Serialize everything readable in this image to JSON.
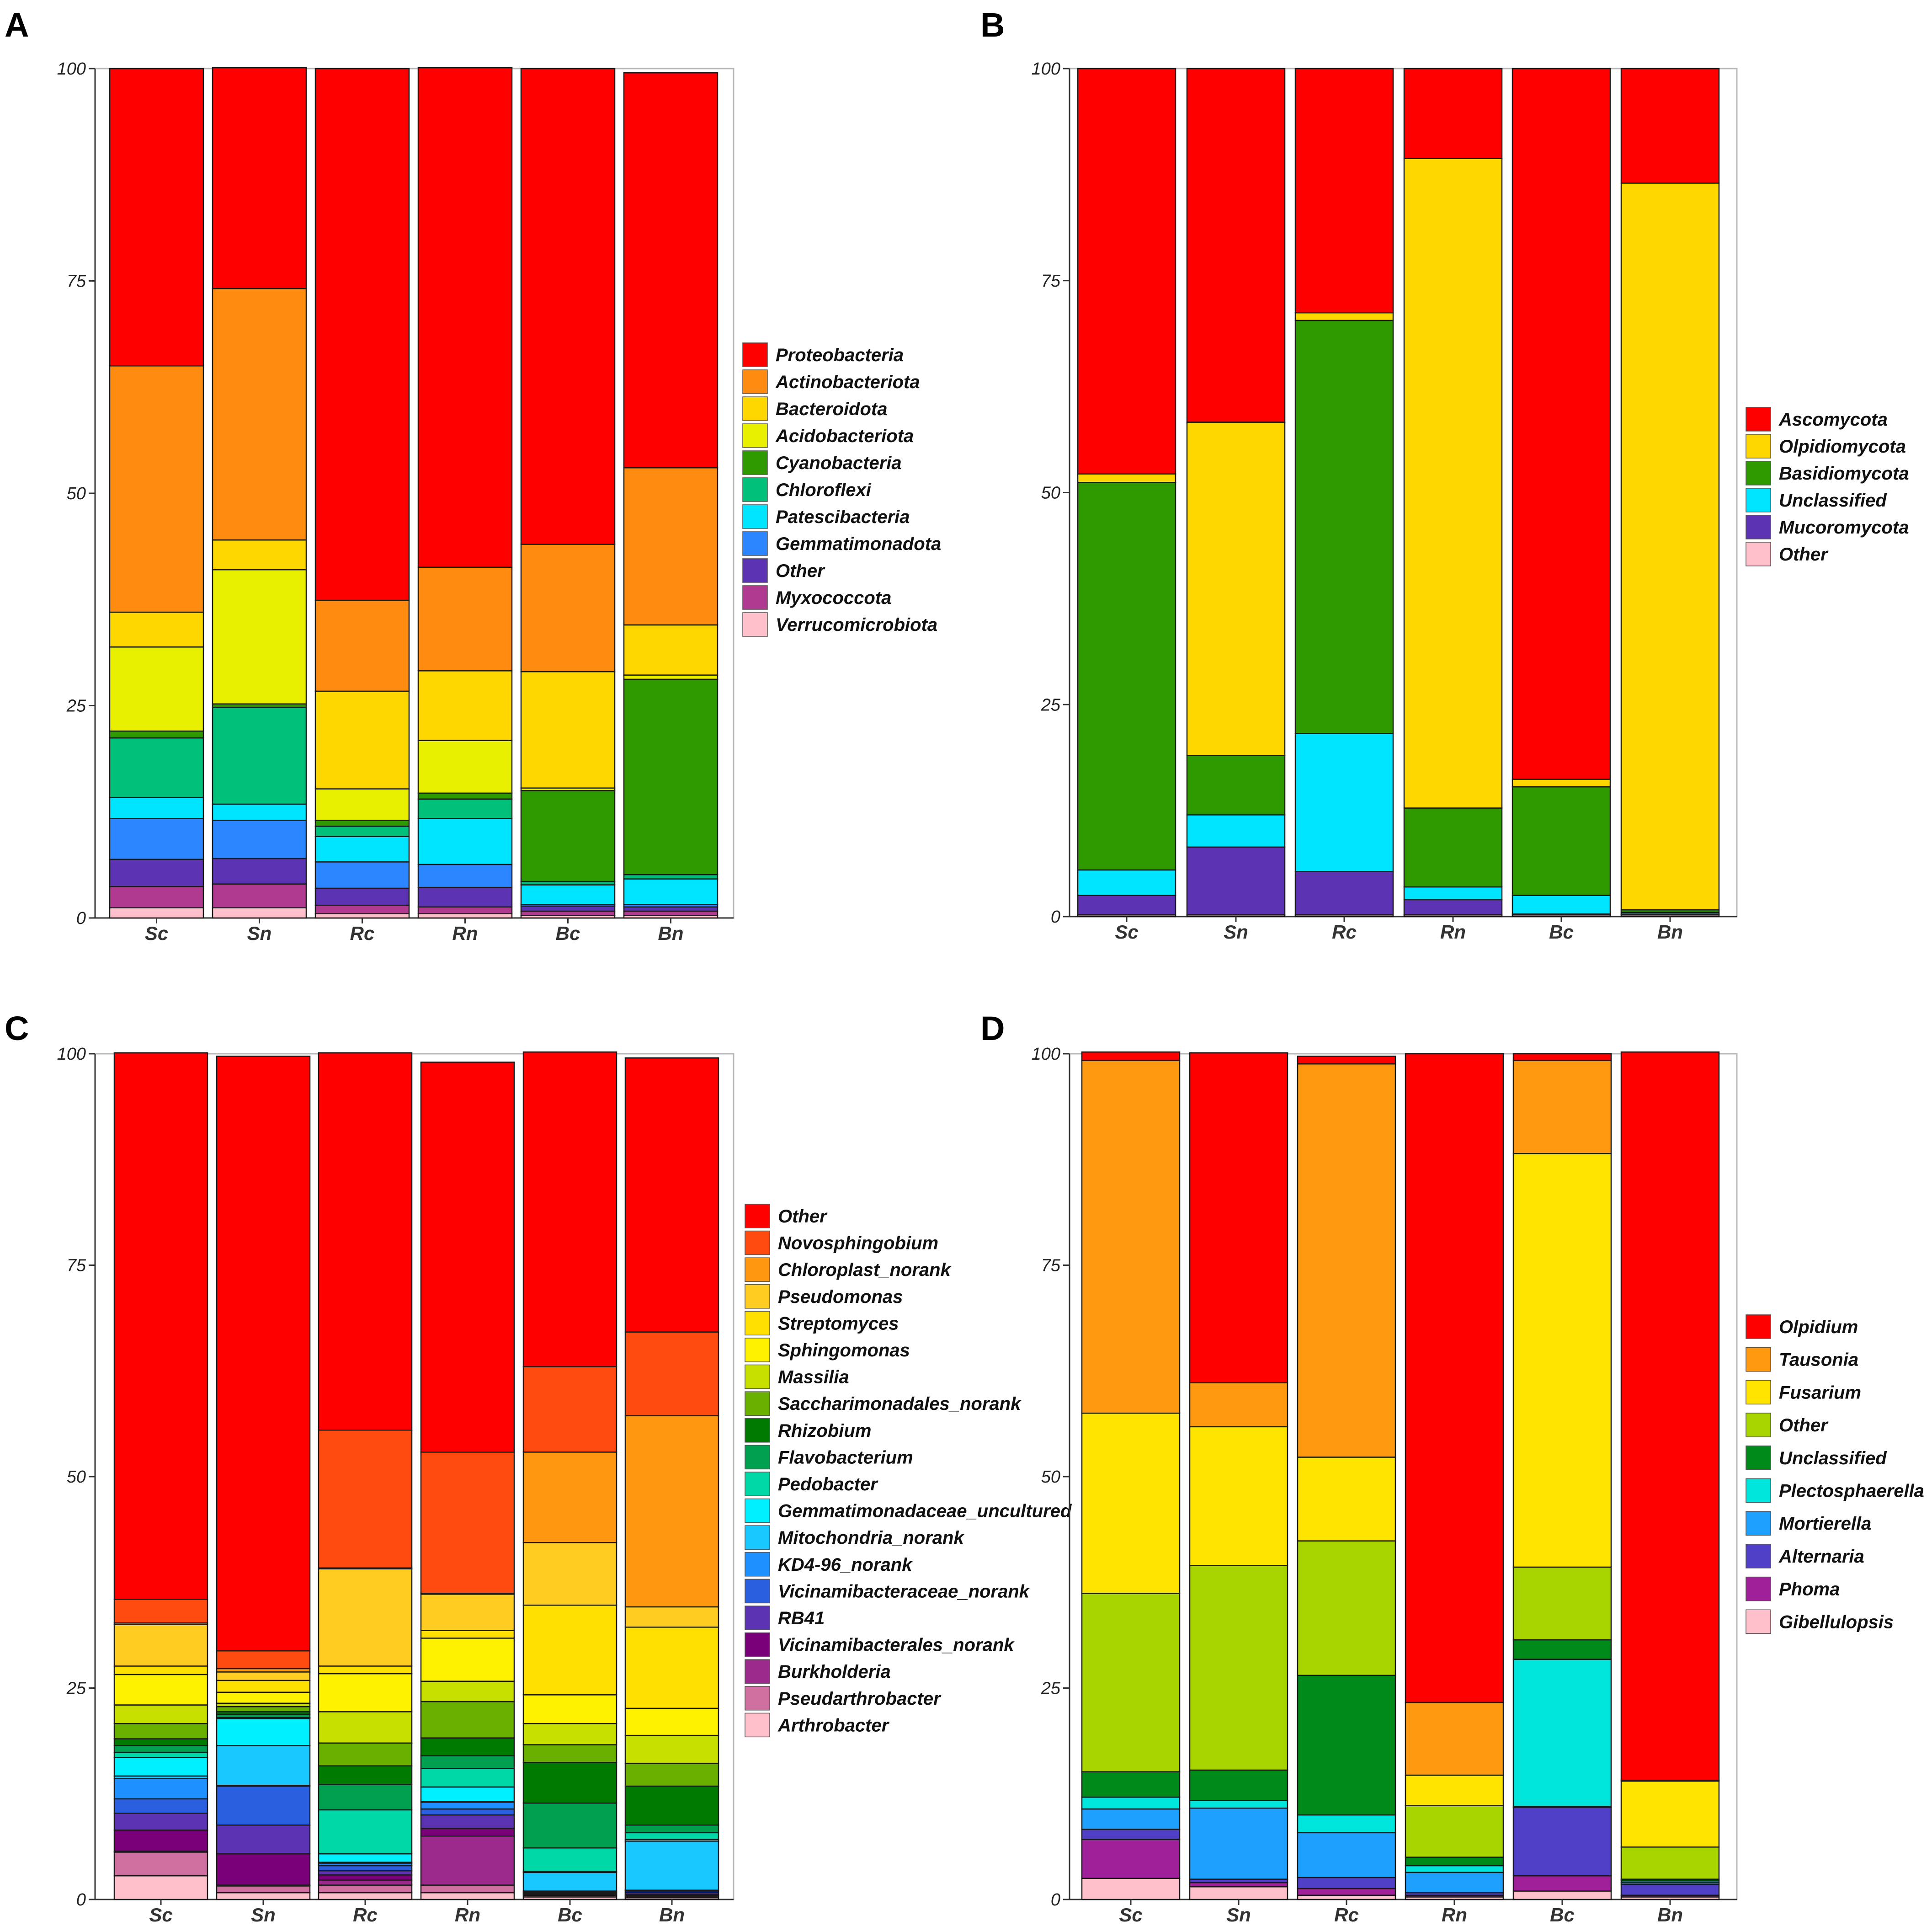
{
  "chart_data": [
    {
      "panel": "A",
      "type": "bar",
      "stacked": true,
      "title": "",
      "xlabel": "",
      "ylabel": "",
      "ylim": [
        0,
        100
      ],
      "yticks": [
        0,
        25,
        50,
        75,
        100
      ],
      "legend_position": "right",
      "categories": [
        "Sc",
        "Sn",
        "Rc",
        "Rn",
        "Bc",
        "Bn"
      ],
      "series": [
        {
          "name": "Verrucomicrobiota",
          "color": "#ffc0cb",
          "values": [
            1.2,
            1.2,
            0.5,
            0.5,
            0.3,
            0.3
          ]
        },
        {
          "name": "Myxococcota",
          "color": "#b03a90",
          "values": [
            2.5,
            2.8,
            1.0,
            0.8,
            0.5,
            0.5
          ]
        },
        {
          "name": "Other",
          "color": "#5b33b3",
          "values": [
            3.2,
            3.0,
            2.0,
            2.3,
            0.6,
            0.5
          ]
        },
        {
          "name": "Gemmatimonadota",
          "color": "#2b86ff",
          "values": [
            4.8,
            4.5,
            3.1,
            2.7,
            0.2,
            0.3
          ]
        },
        {
          "name": "Patescibacteria",
          "color": "#00e5ff",
          "values": [
            2.5,
            1.9,
            3.0,
            5.4,
            2.3,
            3.0
          ]
        },
        {
          "name": "Chloroflexi",
          "color": "#00c07a",
          "values": [
            7.0,
            11.4,
            1.2,
            2.3,
            0.4,
            0.5
          ]
        },
        {
          "name": "Cyanobacteria",
          "color": "#2e9a00",
          "values": [
            0.8,
            0.4,
            0.7,
            0.7,
            10.7,
            23.0
          ]
        },
        {
          "name": "Acidobacteriota",
          "color": "#e8f000",
          "values": [
            9.9,
            15.8,
            3.7,
            6.2,
            0.3,
            0.5
          ]
        },
        {
          "name": "Bacteroidota",
          "color": "#ffd700",
          "values": [
            4.1,
            3.5,
            11.5,
            8.2,
            13.7,
            5.9
          ]
        },
        {
          "name": "Actinobacteriota",
          "color": "#ff8c10",
          "values": [
            29.0,
            29.6,
            10.7,
            12.2,
            15.0,
            18.5
          ]
        },
        {
          "name": "Proteobacteria",
          "color": "#ff0000",
          "values": [
            35.0,
            26.0,
            62.6,
            58.8,
            56.0,
            46.5
          ]
        }
      ],
      "legend_order": [
        "Proteobacteria",
        "Actinobacteriota",
        "Bacteroidota",
        "Acidobacteriota",
        "Cyanobacteria",
        "Chloroflexi",
        "Patescibacteria",
        "Gemmatimonadota",
        "Other",
        "Myxococcota",
        "Verrucomicrobiota"
      ]
    },
    {
      "panel": "B",
      "type": "bar",
      "stacked": true,
      "title": "",
      "xlabel": "",
      "ylabel": "",
      "ylim": [
        0,
        100
      ],
      "yticks": [
        0,
        25,
        50,
        75,
        100
      ],
      "legend_position": "right",
      "categories": [
        "Sc",
        "Sn",
        "Rc",
        "Rn",
        "Bc",
        "Bn"
      ],
      "series": [
        {
          "name": "Other",
          "color": "#ffc0cb",
          "values": [
            0.2,
            0.2,
            0.2,
            0.2,
            0.2,
            0.2
          ]
        },
        {
          "name": "Mucoromycota",
          "color": "#5b33b3",
          "values": [
            2.3,
            8.0,
            5.1,
            1.8,
            0.1,
            0.1
          ]
        },
        {
          "name": "Unclassified",
          "color": "#00e5ff",
          "values": [
            3.0,
            3.8,
            16.3,
            1.5,
            2.2,
            0.2
          ]
        },
        {
          "name": "Basidiomycota",
          "color": "#2e9a00",
          "values": [
            45.7,
            7.0,
            48.7,
            9.3,
            12.8,
            0.3
          ]
        },
        {
          "name": "Olpidiomycota",
          "color": "#ffd700",
          "values": [
            1.0,
            39.3,
            0.9,
            76.6,
            0.9,
            85.7
          ]
        },
        {
          "name": "Ascomycota",
          "color": "#ff0000",
          "values": [
            47.8,
            41.7,
            28.8,
            10.6,
            83.8,
            13.5
          ]
        }
      ],
      "legend_order": [
        "Ascomycota",
        "Olpidiomycota",
        "Basidiomycota",
        "Unclassified",
        "Mucoromycota",
        "Other"
      ]
    },
    {
      "panel": "C",
      "type": "bar",
      "stacked": true,
      "title": "",
      "xlabel": "",
      "ylabel": "",
      "ylim": [
        0,
        100
      ],
      "yticks": [
        0,
        25,
        50,
        75,
        100
      ],
      "legend_position": "right",
      "categories": [
        "Sc",
        "Sn",
        "Rc",
        "Rn",
        "Bc",
        "Bn"
      ],
      "series": [
        {
          "name": "Arthrobacter",
          "color": "#ffc0cb",
          "values": [
            2.8,
            0.8,
            0.8,
            0.8,
            0.3,
            0.2
          ]
        },
        {
          "name": "Pseudarthrobacter",
          "color": "#d070a0",
          "values": [
            2.8,
            0.8,
            0.9,
            0.9,
            0.2,
            0.2
          ]
        },
        {
          "name": "Burkholderia",
          "color": "#9c2a8c",
          "values": [
            0.1,
            0.1,
            0.6,
            5.8,
            0.1,
            0.1
          ]
        },
        {
          "name": "Vicinamibacterales_norank",
          "color": "#7a007a",
          "values": [
            2.5,
            3.7,
            0.6,
            0.9,
            0.1,
            0.1
          ]
        },
        {
          "name": "RB41",
          "color": "#5b33b3",
          "values": [
            2.0,
            3.4,
            0.5,
            1.6,
            0.1,
            0.2
          ]
        },
        {
          "name": "Vicinamibacteraceae_norank",
          "color": "#2a5fe0",
          "values": [
            1.7,
            4.6,
            0.6,
            0.7,
            0.1,
            0.2
          ]
        },
        {
          "name": "KD4-96_norank",
          "color": "#1e90ff",
          "values": [
            2.4,
            0.1,
            0.3,
            0.8,
            0.1,
            0.1
          ]
        },
        {
          "name": "Mitochondria_norank",
          "color": "#19c8ff",
          "values": [
            0.3,
            4.7,
            0.1,
            0.1,
            2.2,
            5.8
          ]
        },
        {
          "name": "Gemmatimonadaceae_uncultured",
          "color": "#00f0ff",
          "values": [
            2.2,
            3.2,
            1.0,
            1.7,
            0.1,
            0.2
          ]
        },
        {
          "name": "Pedobacter",
          "color": "#00d8a8",
          "values": [
            0.6,
            0.1,
            5.2,
            2.2,
            2.8,
            0.8
          ]
        },
        {
          "name": "Flavobacterium",
          "color": "#00a050",
          "values": [
            0.8,
            0.4,
            3.0,
            1.5,
            5.3,
            0.9
          ]
        },
        {
          "name": "Rhizobium",
          "color": "#007a00",
          "values": [
            0.8,
            0.3,
            2.2,
            2.1,
            4.8,
            4.6
          ]
        },
        {
          "name": "Saccharimonadales_norank",
          "color": "#6ab000",
          "values": [
            1.8,
            0.6,
            2.7,
            4.3,
            2.1,
            2.7
          ]
        },
        {
          "name": "Massilia",
          "color": "#c8e000",
          "values": [
            2.2,
            0.4,
            3.7,
            2.4,
            2.5,
            3.3
          ]
        },
        {
          "name": "Sphingomonas",
          "color": "#fff200",
          "values": [
            3.6,
            1.3,
            4.5,
            5.1,
            3.4,
            3.2
          ]
        },
        {
          "name": "Streptomyces",
          "color": "#ffe000",
          "values": [
            1.0,
            1.4,
            0.9,
            0.9,
            10.6,
            9.6
          ]
        },
        {
          "name": "Pseudomonas",
          "color": "#ffcc22",
          "values": [
            4.9,
            1.0,
            11.5,
            4.3,
            7.4,
            2.4
          ]
        },
        {
          "name": "Chloroplast_norank",
          "color": "#ff9810",
          "values": [
            0.2,
            0.4,
            0.1,
            0.1,
            10.7,
            22.6
          ]
        },
        {
          "name": "Novosphingobium",
          "color": "#ff4a10",
          "values": [
            2.8,
            2.1,
            16.3,
            16.7,
            10.1,
            9.9
          ]
        },
        {
          "name": "Other",
          "color": "#ff0000",
          "values": [
            64.6,
            70.3,
            44.6,
            46.1,
            37.2,
            32.4
          ]
        }
      ],
      "legend_order": [
        "Other",
        "Novosphingobium",
        "Chloroplast_norank",
        "Pseudomonas",
        "Streptomyces",
        "Sphingomonas",
        "Massilia",
        "Saccharimonadales_norank",
        "Rhizobium",
        "Flavobacterium",
        "Pedobacter",
        "Gemmatimonadaceae_uncultured",
        "Mitochondria_norank",
        "KD4-96_norank",
        "Vicinamibacteraceae_norank",
        "RB41",
        "Vicinamibacterales_norank",
        "Burkholderia",
        "Pseudarthrobacter",
        "Arthrobacter"
      ]
    },
    {
      "panel": "D",
      "type": "bar",
      "stacked": true,
      "title": "",
      "xlabel": "",
      "ylabel": "",
      "ylim": [
        0,
        100
      ],
      "yticks": [
        0,
        25,
        50,
        75,
        100
      ],
      "legend_position": "right",
      "categories": [
        "Sc",
        "Sn",
        "Rc",
        "Rn",
        "Bc",
        "Bn"
      ],
      "series": [
        {
          "name": "Gibellulopsis",
          "color": "#ffc0cb",
          "values": [
            2.5,
            1.5,
            0.5,
            0.3,
            1.0,
            0.3
          ]
        },
        {
          "name": "Phoma",
          "color": "#a0209a",
          "values": [
            4.6,
            0.5,
            0.8,
            0.2,
            1.8,
            0.2
          ]
        },
        {
          "name": "Alternaria",
          "color": "#5040c8",
          "values": [
            1.2,
            0.4,
            1.3,
            0.3,
            8.1,
            1.3
          ]
        },
        {
          "name": "Mortierella",
          "color": "#1ea0ff",
          "values": [
            2.4,
            8.4,
            5.3,
            2.4,
            0.1,
            0.2
          ]
        },
        {
          "name": "Plectosphaerella",
          "color": "#00e5dc",
          "values": [
            1.4,
            0.9,
            2.1,
            0.8,
            17.4,
            0.2
          ]
        },
        {
          "name": "Unclassified",
          "color": "#008a1a",
          "values": [
            3.0,
            3.6,
            16.5,
            1.0,
            2.3,
            0.2
          ]
        },
        {
          "name": "Other",
          "color": "#a8d400",
          "values": [
            21.1,
            24.2,
            15.9,
            6.1,
            8.6,
            3.8
          ]
        },
        {
          "name": "Fusarium",
          "color": "#ffe400",
          "values": [
            21.3,
            16.4,
            9.9,
            3.6,
            48.9,
            7.8
          ]
        },
        {
          "name": "Tausonia",
          "color": "#ff9a10",
          "values": [
            41.7,
            5.2,
            46.5,
            8.6,
            11.0,
            0.1
          ]
        },
        {
          "name": "Olpidium",
          "color": "#ff0000",
          "values": [
            1.0,
            39.0,
            0.9,
            76.7,
            0.8,
            86.1
          ]
        }
      ],
      "legend_order": [
        "Olpidium",
        "Tausonia",
        "Fusarium",
        "Other",
        "Unclassified",
        "Plectosphaerella",
        "Mortierella",
        "Alternaria",
        "Phoma",
        "Gibellulopsis"
      ]
    }
  ]
}
